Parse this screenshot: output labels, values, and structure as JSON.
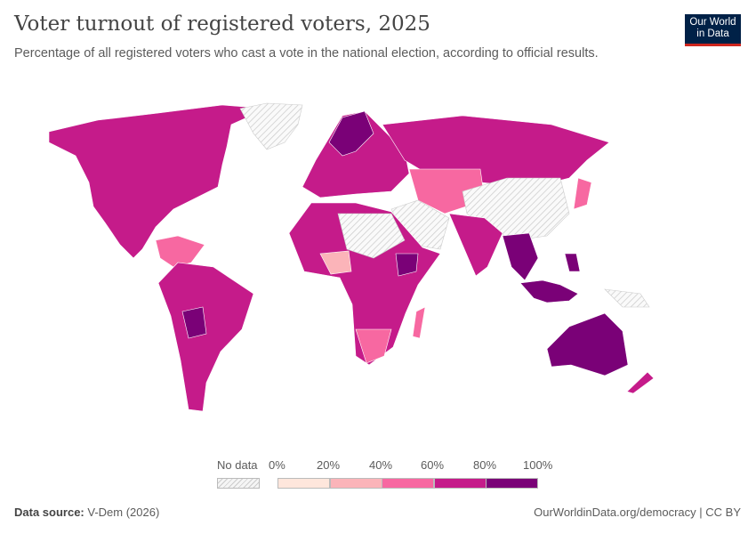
{
  "header": {
    "title": "Voter turnout of registered voters, 2025",
    "subtitle": "Percentage of all registered voters who cast a vote in the national election, according to official results."
  },
  "logo": {
    "line1": "Our World",
    "line2": "in Data"
  },
  "legend": {
    "no_data_label": "No data",
    "ticks": [
      "0%",
      "20%",
      "40%",
      "60%",
      "80%",
      "100%"
    ],
    "bins": [
      {
        "range": "0-20%",
        "color": "#fee6dc"
      },
      {
        "range": "20-40%",
        "color": "#fbb4b9"
      },
      {
        "range": "40-60%",
        "color": "#f768a1"
      },
      {
        "range": "60-80%",
        "color": "#c51b8a"
      },
      {
        "range": "80-100%",
        "color": "#7a0177"
      }
    ],
    "no_data_color": "#e8e8e8"
  },
  "footer": {
    "source_label": "Data source:",
    "source": "V-Dem (2026)",
    "link": "OurWorldinData.org/democracy | CC BY"
  }
}
